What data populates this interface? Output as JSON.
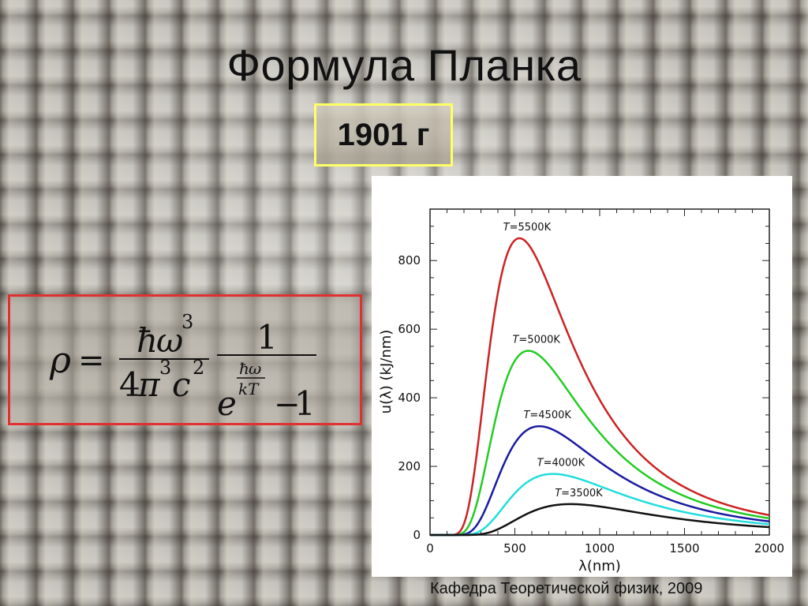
{
  "slide": {
    "title": "Формула Планка",
    "year": "1901 г",
    "footer": "Кафедра Теоретической физик, 2009"
  },
  "formula": {
    "rho": "ρ",
    "equals": "=",
    "hbar": "ħ",
    "omega": "ω",
    "three": "3",
    "two": "2",
    "four": "4",
    "pi": "π",
    "c": "c",
    "one": "1",
    "e": "e",
    "kT": "kT",
    "minus": "−",
    "colors": {
      "text": "#111111",
      "border": "#e03030"
    }
  },
  "chart_data": {
    "type": "line",
    "xlabel": "λ(nm)",
    "ylabel": "u(λ) (kJ/nm)",
    "xlim": [
      0,
      2000
    ],
    "ylim": [
      0,
      950
    ],
    "xticks": [
      0,
      500,
      1000,
      1500,
      2000
    ],
    "yticks": [
      0,
      200,
      400,
      600,
      800
    ],
    "grid": false,
    "series": [
      {
        "name": "T=5500K",
        "label_value": "5500K",
        "color": "#cc2222",
        "T": 5500,
        "peak_y": 865
      },
      {
        "name": "T=5000K",
        "label_value": "5000K",
        "color": "#22cc22",
        "T": 5000,
        "peak_y": 537
      },
      {
        "name": "T=4500K",
        "label_value": "4500K",
        "color": "#1a1aa0",
        "T": 4500,
        "peak_y": 317
      },
      {
        "name": "T=4000K",
        "label_value": "4000K",
        "color": "#22dddd",
        "T": 4000,
        "peak_y": 178
      },
      {
        "name": "T=3500K",
        "label_value": "3500K",
        "color": "#111111",
        "T": 3500,
        "peak_y": 90
      }
    ]
  }
}
